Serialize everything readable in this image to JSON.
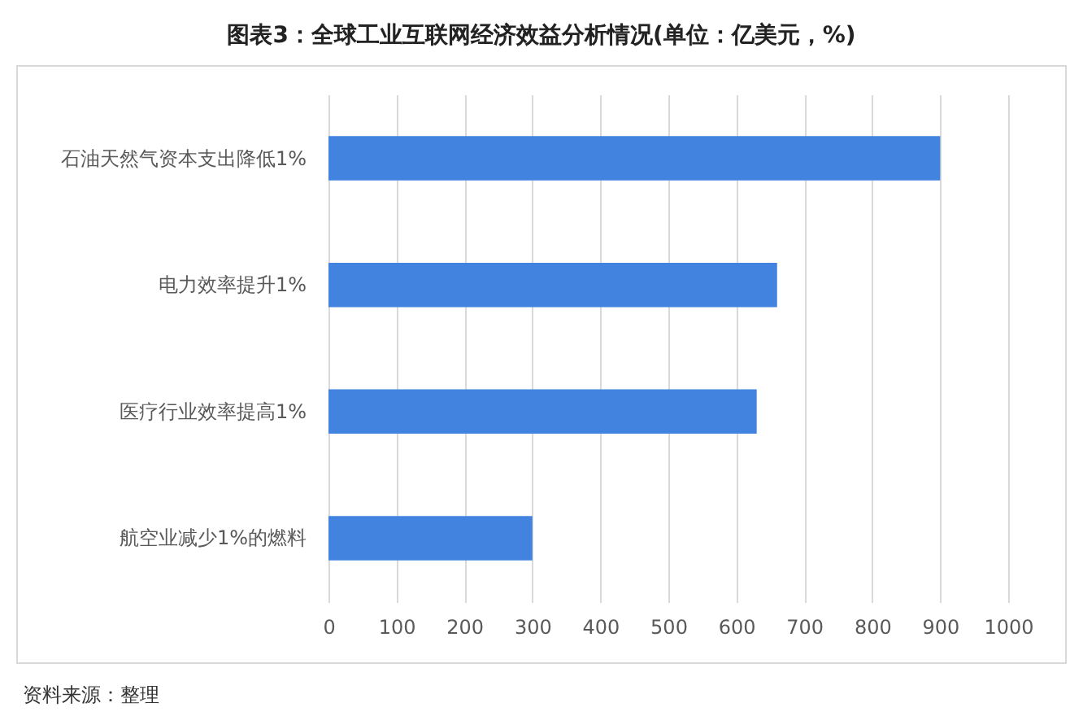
{
  "chart_data": {
    "type": "bar",
    "orientation": "horizontal",
    "title": "图表3：全球工业互联网经济效益分析情况(单位：亿美元，%)",
    "categories": [
      "石油天然气资本支出降低1%",
      "电力效率提升1%",
      "医疗行业效率提高1%",
      "航空业减少1%的燃料"
    ],
    "values": [
      900,
      660,
      630,
      300
    ],
    "color": "#4283e0",
    "xlim": [
      0,
      1000
    ],
    "xticks": [
      0,
      100,
      200,
      300,
      400,
      500,
      600,
      700,
      800,
      900,
      1000
    ],
    "grid": "x",
    "annotations": [
      "资料来源：整理"
    ]
  }
}
